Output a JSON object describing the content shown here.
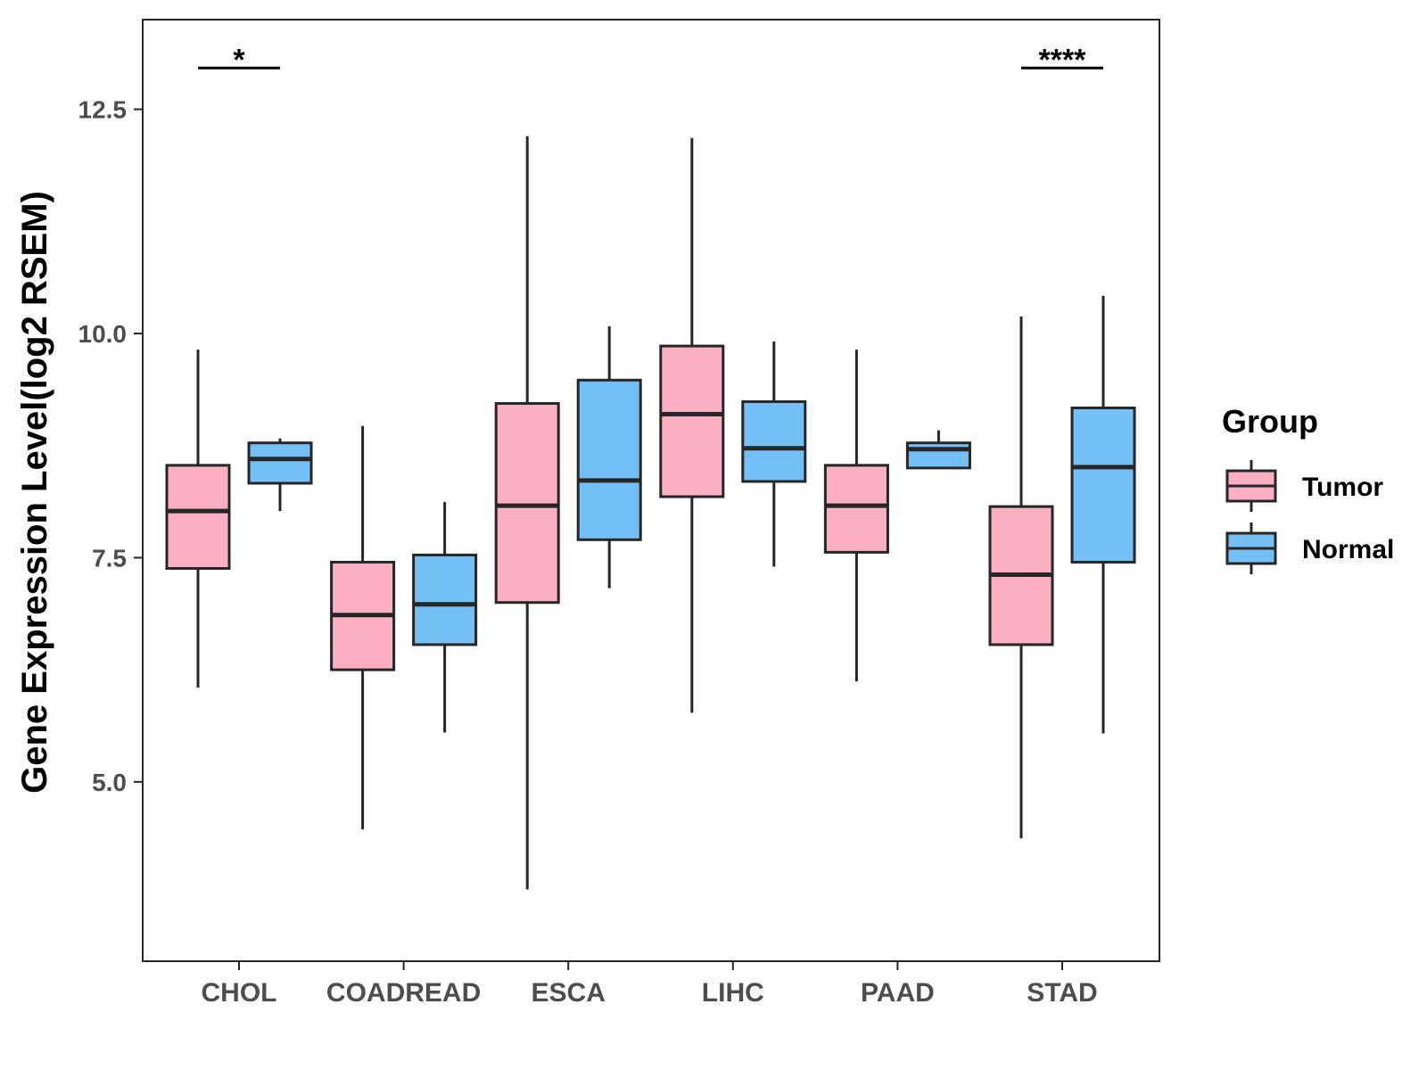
{
  "chart_data": {
    "type": "boxplot",
    "title": "",
    "xlabel": "",
    "ylabel": "Gene Expression Level(log2 RSEM)",
    "ylim": [
      3.0,
      13.5
    ],
    "yticks": [
      "5.0",
      "7.5",
      "10.0",
      "12.5"
    ],
    "ytick_values": [
      5.0,
      7.5,
      10.0,
      12.5
    ],
    "categories": [
      "CHOL",
      "COADREAD",
      "ESCA",
      "LIHC",
      "PAAD",
      "STAD"
    ],
    "legend": {
      "title": "Group",
      "position": "right",
      "entries": [
        "Tumor",
        "Normal"
      ]
    },
    "series": [
      {
        "name": "Tumor",
        "color": "#FBB0C2",
        "boxes": [
          {
            "category": "CHOL",
            "whisker_low": 6.05,
            "q1": 7.38,
            "median": 8.02,
            "q3": 8.53,
            "whisker_high": 9.82
          },
          {
            "category": "COADREAD",
            "whisker_low": 4.47,
            "q1": 6.25,
            "median": 6.86,
            "q3": 7.45,
            "whisker_high": 8.97
          },
          {
            "category": "ESCA",
            "whisker_low": 3.8,
            "q1": 7.0,
            "median": 8.08,
            "q3": 9.22,
            "whisker_high": 12.2
          },
          {
            "category": "LIHC",
            "whisker_low": 5.77,
            "q1": 8.18,
            "median": 9.1,
            "q3": 9.86,
            "whisker_high": 12.18
          },
          {
            "category": "PAAD",
            "whisker_low": 6.12,
            "q1": 7.56,
            "median": 8.08,
            "q3": 8.53,
            "whisker_high": 9.82
          },
          {
            "category": "STAD",
            "whisker_low": 4.37,
            "q1": 6.53,
            "median": 7.31,
            "q3": 8.07,
            "whisker_high": 10.19
          }
        ]
      },
      {
        "name": "Normal",
        "color": "#74C0F6",
        "boxes": [
          {
            "category": "CHOL",
            "whisker_low": 8.02,
            "q1": 8.33,
            "median": 8.6,
            "q3": 8.78,
            "whisker_high": 8.83
          },
          {
            "category": "COADREAD",
            "whisker_low": 5.55,
            "q1": 6.53,
            "median": 6.98,
            "q3": 7.53,
            "whisker_high": 8.12
          },
          {
            "category": "ESCA",
            "whisker_low": 7.16,
            "q1": 7.7,
            "median": 8.36,
            "q3": 9.48,
            "whisker_high": 10.08
          },
          {
            "category": "LIHC",
            "whisker_low": 7.4,
            "q1": 8.35,
            "median": 8.72,
            "q3": 9.24,
            "whisker_high": 9.91
          },
          {
            "category": "PAAD",
            "whisker_low": 8.5,
            "q1": 8.5,
            "median": 8.71,
            "q3": 8.78,
            "whisker_high": 8.92
          },
          {
            "category": "STAD",
            "whisker_low": 5.54,
            "q1": 7.45,
            "median": 8.51,
            "q3": 9.17,
            "whisker_high": 10.42
          }
        ]
      }
    ],
    "significance": [
      {
        "category": "CHOL",
        "label": "*",
        "y": 12.96
      },
      {
        "category": "STAD",
        "label": "****",
        "y": 12.96
      }
    ],
    "style": {
      "box_stroke": "#262626",
      "axis_color": "#262626"
    }
  }
}
